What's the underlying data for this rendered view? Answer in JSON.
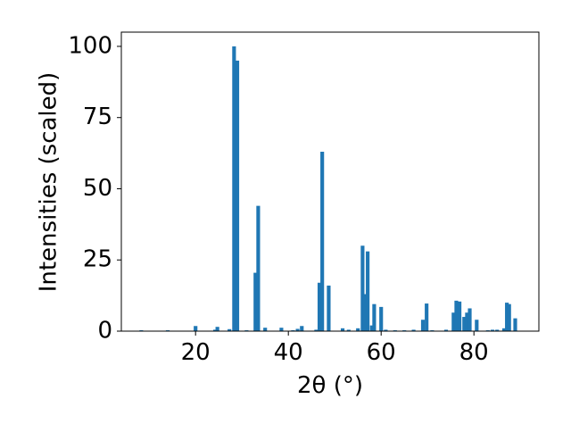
{
  "chart_data": {
    "type": "bar",
    "xlabel": "2θ (°)",
    "ylabel": "Intensities (scaled)",
    "x": [
      8.3,
      14,
      20,
      24.2,
      24.7,
      27.3,
      28.3,
      29,
      31,
      32.9,
      33.5,
      35,
      38.5,
      41,
      42,
      42.9,
      46,
      46.7,
      47.3,
      48.7,
      51.7,
      53,
      55,
      56,
      56.5,
      57.1,
      58,
      58.5,
      60,
      61,
      63,
      65,
      67,
      69,
      69.8,
      71,
      74,
      75.6,
      76.2,
      76.9,
      77.9,
      78.5,
      79.1,
      80.6,
      83,
      84,
      85,
      86.5,
      87.1,
      87.6,
      88.9
    ],
    "values": [
      0.3,
      0.3,
      1.8,
      0.5,
      1.5,
      0.7,
      100,
      95,
      0.3,
      20.5,
      44,
      1.2,
      1.2,
      0.3,
      0.8,
      1.8,
      0.5,
      17,
      63,
      16,
      1,
      0.5,
      1,
      30,
      13,
      28,
      2,
      9.5,
      8.5,
      0.5,
      0.3,
      0.3,
      0.5,
      4,
      9.7,
      0.3,
      0.5,
      6.5,
      10.7,
      10.4,
      5,
      6.5,
      8,
      4,
      0.3,
      0.5,
      0.5,
      1,
      10,
      9.5,
      4.5
    ],
    "bar_width": 0.8,
    "color": "#1f77b4",
    "xlim": [
      4,
      94
    ],
    "xticks": [
      20,
      40,
      60,
      80
    ],
    "ylim": [
      0,
      105
    ],
    "yticks": [
      0,
      25,
      50,
      75,
      100
    ],
    "grid": false
  }
}
